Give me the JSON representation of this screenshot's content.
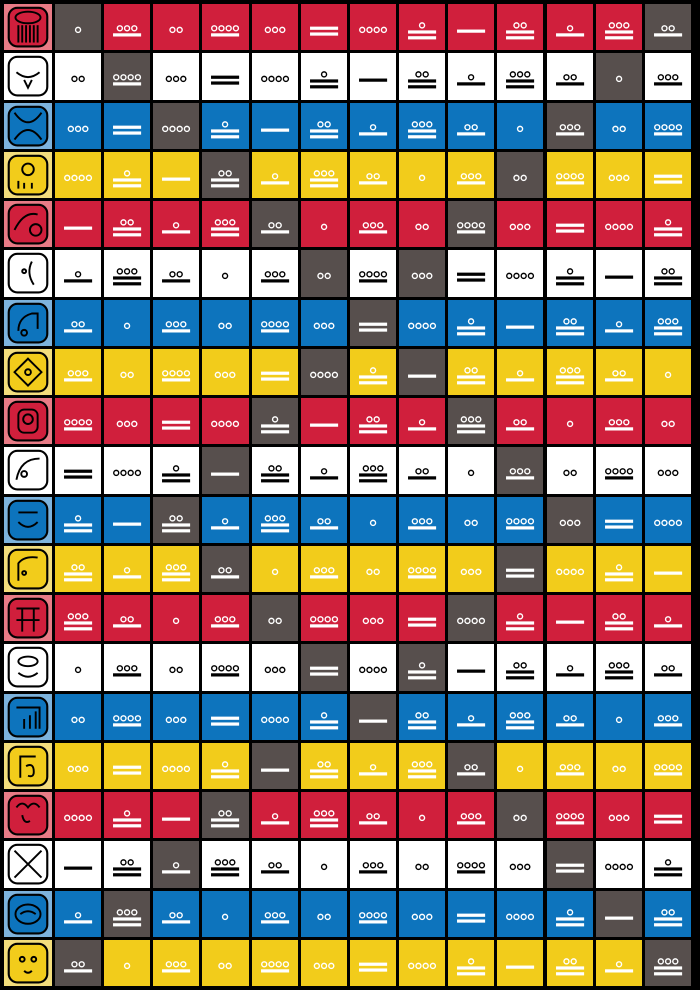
{
  "palette": {
    "red": "#d01f3c",
    "white": "#ffffff",
    "blue": "#0d74bd",
    "yellow": "#f2cc1b",
    "gray": "#574f4d",
    "red_glyph_bg": "#e87b86",
    "blue_glyph_bg": "#7db3dd",
    "yellow_glyph_bg": "#f3dd7c",
    "white_glyph_bg": "#ffffff",
    "gray_glyph_bg": "#6c6463"
  },
  "rows": [
    {
      "sign": "imix-icon",
      "color": "red",
      "numbers": [
        1,
        8,
        2,
        9,
        3,
        10,
        4,
        11,
        5,
        12,
        6,
        13,
        7
      ],
      "gray": [
        0,
        12
      ]
    },
    {
      "sign": "ik-icon",
      "color": "white",
      "numbers": [
        2,
        9,
        3,
        10,
        4,
        11,
        5,
        12,
        6,
        13,
        7,
        1,
        8
      ],
      "gray": [
        1,
        11
      ]
    },
    {
      "sign": "akbal-icon",
      "color": "blue",
      "numbers": [
        3,
        10,
        4,
        11,
        5,
        12,
        6,
        13,
        7,
        1,
        8,
        2,
        9
      ],
      "gray": [
        2,
        10
      ]
    },
    {
      "sign": "kan-icon",
      "color": "yellow",
      "numbers": [
        4,
        11,
        5,
        12,
        6,
        13,
        7,
        1,
        8,
        2,
        9,
        3,
        10
      ],
      "gray": [
        3,
        9
      ]
    },
    {
      "sign": "chicchan-icon",
      "color": "red",
      "numbers": [
        5,
        12,
        6,
        13,
        7,
        1,
        8,
        2,
        9,
        3,
        10,
        4,
        11
      ],
      "gray": [
        4,
        8
      ]
    },
    {
      "sign": "cimi-icon",
      "color": "white",
      "numbers": [
        6,
        13,
        7,
        1,
        8,
        2,
        9,
        3,
        10,
        4,
        11,
        5,
        12
      ],
      "gray": [
        5,
        7
      ]
    },
    {
      "sign": "manik-icon",
      "color": "blue",
      "numbers": [
        7,
        1,
        8,
        2,
        9,
        3,
        10,
        4,
        11,
        5,
        12,
        6,
        13
      ],
      "gray": [
        6
      ]
    },
    {
      "sign": "lamat-icon",
      "color": "yellow",
      "numbers": [
        8,
        2,
        9,
        3,
        10,
        4,
        11,
        5,
        12,
        6,
        13,
        7,
        1
      ],
      "gray": [
        5,
        7
      ]
    },
    {
      "sign": "muluc-icon",
      "color": "red",
      "numbers": [
        9,
        3,
        10,
        4,
        11,
        5,
        12,
        6,
        13,
        7,
        1,
        8,
        2
      ],
      "gray": [
        4,
        8
      ]
    },
    {
      "sign": "oc-icon",
      "color": "white",
      "numbers": [
        10,
        4,
        11,
        5,
        12,
        6,
        13,
        7,
        1,
        8,
        2,
        9,
        3
      ],
      "gray": [
        3,
        9
      ]
    },
    {
      "sign": "chuen-icon",
      "color": "blue",
      "numbers": [
        11,
        5,
        12,
        6,
        13,
        7,
        1,
        8,
        2,
        9,
        3,
        10,
        4
      ],
      "gray": [
        2,
        10
      ]
    },
    {
      "sign": "eb-icon",
      "color": "yellow",
      "numbers": [
        12,
        6,
        13,
        7,
        1,
        8,
        2,
        9,
        3,
        10,
        4,
        11,
        5
      ],
      "gray": [
        3,
        9
      ]
    },
    {
      "sign": "ben-icon",
      "color": "red",
      "numbers": [
        13,
        7,
        1,
        8,
        2,
        9,
        3,
        10,
        4,
        11,
        5,
        12,
        6
      ],
      "gray": [
        4,
        8
      ]
    },
    {
      "sign": "ix-icon",
      "color": "white",
      "numbers": [
        1,
        8,
        2,
        9,
        3,
        10,
        4,
        11,
        5,
        12,
        6,
        13,
        7
      ],
      "gray": [
        5,
        7
      ]
    },
    {
      "sign": "men-icon",
      "color": "blue",
      "numbers": [
        2,
        9,
        3,
        10,
        4,
        11,
        5,
        12,
        6,
        13,
        7,
        1,
        8
      ],
      "gray": [
        6
      ]
    },
    {
      "sign": "cib-icon",
      "color": "yellow",
      "numbers": [
        3,
        10,
        4,
        11,
        5,
        12,
        6,
        13,
        7,
        1,
        8,
        2,
        9
      ],
      "gray": [
        4,
        8
      ]
    },
    {
      "sign": "caban-icon",
      "color": "red",
      "numbers": [
        4,
        11,
        5,
        12,
        6,
        13,
        7,
        1,
        8,
        2,
        9,
        3,
        10
      ],
      "gray": [
        3,
        9
      ]
    },
    {
      "sign": "etznab-icon",
      "color": "white",
      "numbers": [
        5,
        12,
        6,
        13,
        7,
        1,
        8,
        2,
        9,
        3,
        10,
        4,
        11
      ],
      "gray": [
        2,
        10
      ]
    },
    {
      "sign": "cauac-icon",
      "color": "blue",
      "numbers": [
        6,
        13,
        7,
        1,
        8,
        2,
        9,
        3,
        10,
        4,
        11,
        5,
        12
      ],
      "gray": [
        1,
        11
      ]
    },
    {
      "sign": "ahau-icon",
      "color": "yellow",
      "numbers": [
        7,
        1,
        8,
        2,
        9,
        3,
        10,
        4,
        11,
        5,
        12,
        6,
        13
      ],
      "gray": [
        0,
        12
      ]
    }
  ]
}
